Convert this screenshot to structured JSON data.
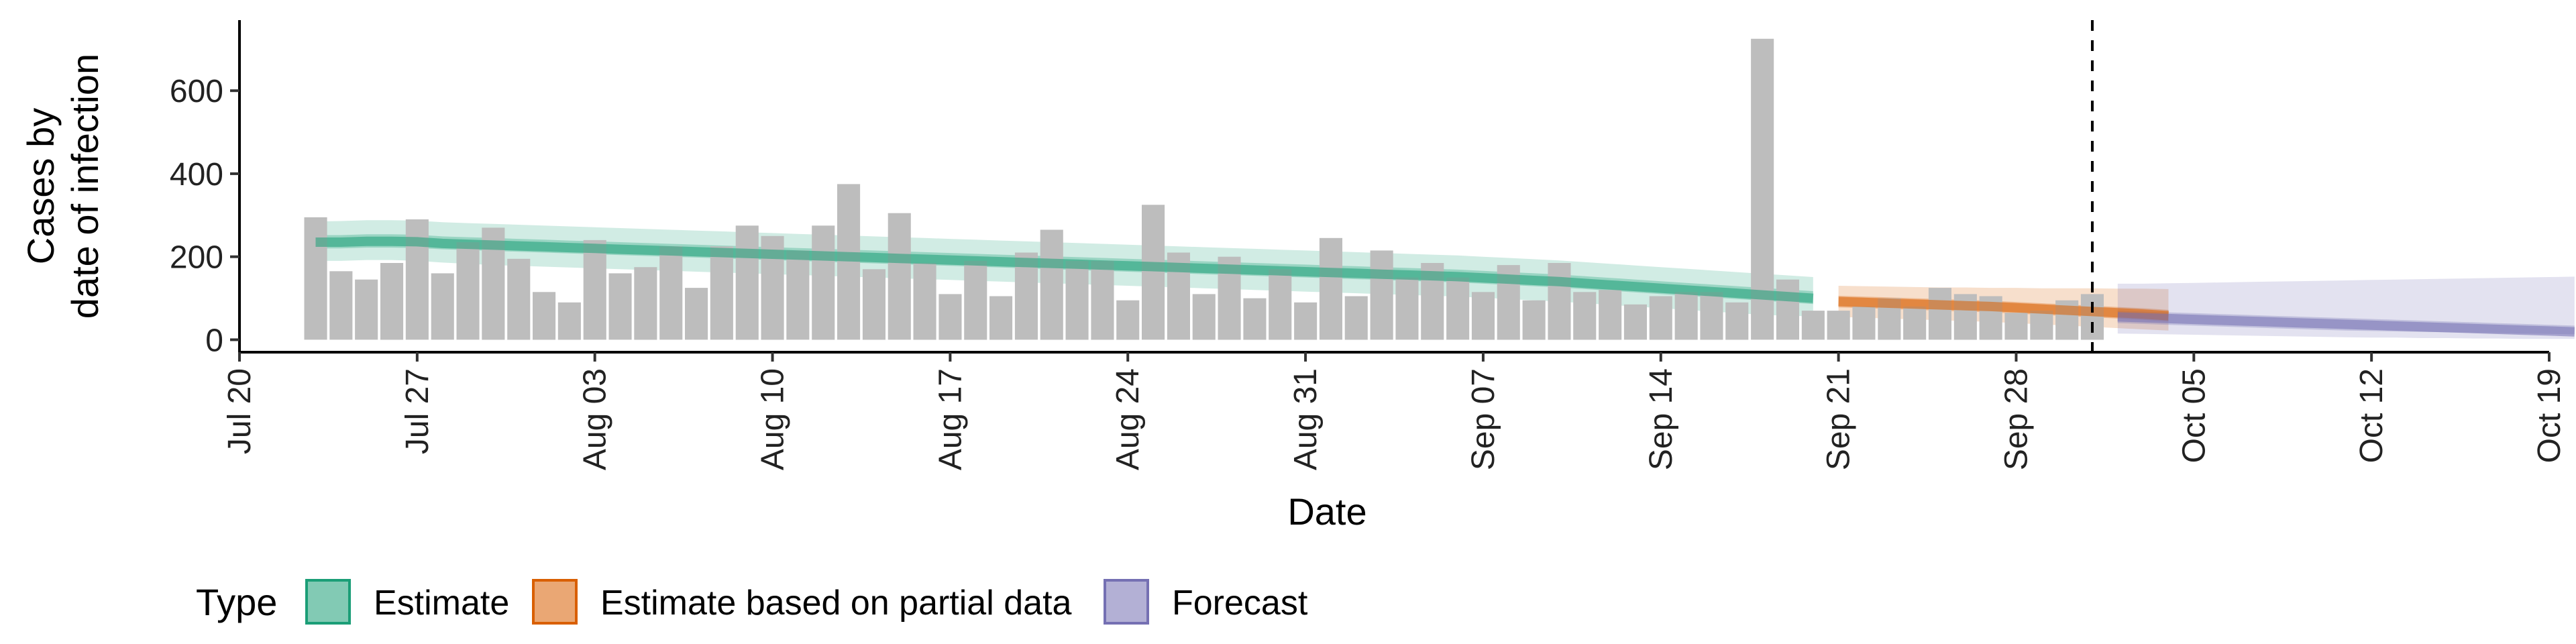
{
  "chart_data": {
    "type": "bar",
    "title": "",
    "xlabel": "Date",
    "ylabel_lines": [
      "Cases by",
      "date of infection"
    ],
    "ylim": [
      -30,
      770
    ],
    "yticks": [
      0,
      200,
      400,
      600
    ],
    "xlim": [
      "2020-07-20",
      "2020-10-19"
    ],
    "xticks": [
      {
        "date": "2020-07-20",
        "label": "Jul 20"
      },
      {
        "date": "2020-07-27",
        "label": "Jul 27"
      },
      {
        "date": "2020-08-03",
        "label": "Aug 03"
      },
      {
        "date": "2020-08-10",
        "label": "Aug 10"
      },
      {
        "date": "2020-08-17",
        "label": "Aug 17"
      },
      {
        "date": "2020-08-24",
        "label": "Aug 24"
      },
      {
        "date": "2020-08-31",
        "label": "Aug 31"
      },
      {
        "date": "2020-09-07",
        "label": "Sep 07"
      },
      {
        "date": "2020-09-14",
        "label": "Sep 14"
      },
      {
        "date": "2020-09-21",
        "label": "Sep 21"
      },
      {
        "date": "2020-09-28",
        "label": "Sep 28"
      },
      {
        "date": "2020-10-05",
        "label": "Oct 05"
      },
      {
        "date": "2020-10-12",
        "label": "Oct 12"
      },
      {
        "date": "2020-10-19",
        "label": "Oct 19"
      }
    ],
    "vline_date": "2020-10-01",
    "bars": {
      "start_date": "2020-07-23",
      "color": "#bdbdbd",
      "values": [
        295,
        165,
        145,
        185,
        290,
        160,
        235,
        270,
        195,
        115,
        90,
        240,
        160,
        175,
        225,
        125,
        225,
        275,
        250,
        215,
        275,
        375,
        170,
        305,
        185,
        110,
        190,
        105,
        210,
        265,
        190,
        190,
        95,
        325,
        210,
        110,
        200,
        100,
        170,
        90,
        245,
        105,
        215,
        150,
        185,
        150,
        115,
        180,
        95,
        185,
        115,
        120,
        85,
        105,
        115,
        115,
        90,
        725,
        145,
        70,
        70,
        80,
        100,
        80,
        125,
        110,
        105,
        65,
        70,
        95,
        110
      ]
    },
    "series": [
      {
        "name": "Estimate",
        "color": "#1b9e77",
        "start_date": "2020-07-23",
        "median": [
          235,
          235,
          237,
          237,
          236,
          232,
          230,
          228,
          226,
          224,
          222,
          220,
          218,
          216,
          214,
          212,
          210,
          208,
          206,
          204,
          202,
          200,
          198,
          196,
          194,
          192,
          190,
          188,
          186,
          184,
          182,
          180,
          178,
          176,
          174,
          172,
          170,
          168,
          166,
          164,
          162,
          160,
          158,
          156,
          154,
          152,
          149,
          146,
          143,
          140,
          136,
          132,
          128,
          124,
          120,
          116,
          112,
          108,
          104,
          100
        ],
        "inner_lo": [
          220,
          220,
          222,
          222,
          221,
          218,
          216,
          214,
          212,
          210,
          208,
          206,
          204,
          202,
          200,
          198,
          196,
          194,
          192,
          190,
          188,
          186,
          184,
          182,
          180,
          178,
          176,
          174,
          172,
          170,
          168,
          166,
          164,
          162,
          160,
          158,
          156,
          154,
          152,
          150,
          148,
          146,
          144,
          142,
          140,
          138,
          135,
          132,
          129,
          126,
          122,
          118,
          114,
          110,
          106,
          102,
          98,
          94,
          90,
          86
        ],
        "inner_hi": [
          252,
          252,
          254,
          254,
          253,
          249,
          247,
          245,
          243,
          241,
          239,
          237,
          235,
          233,
          231,
          229,
          227,
          225,
          223,
          221,
          219,
          217,
          215,
          213,
          211,
          209,
          207,
          205,
          203,
          201,
          199,
          197,
          195,
          193,
          191,
          189,
          187,
          185,
          183,
          181,
          179,
          177,
          175,
          173,
          171,
          169,
          166,
          163,
          160,
          157,
          153,
          149,
          145,
          141,
          137,
          133,
          129,
          125,
          121,
          117
        ],
        "outer_lo": [
          190,
          190,
          192,
          192,
          190,
          186,
          183,
          180,
          178,
          176,
          174,
          172,
          170,
          168,
          166,
          164,
          162,
          160,
          158,
          156,
          154,
          152,
          150,
          148,
          146,
          144,
          142,
          140,
          138,
          136,
          134,
          132,
          130,
          128,
          126,
          124,
          122,
          120,
          118,
          116,
          114,
          112,
          110,
          108,
          106,
          104,
          101,
          98,
          95,
          92,
          88,
          84,
          80,
          76,
          72,
          68,
          64,
          60,
          58,
          56
        ],
        "outer_hi": [
          285,
          286,
          288,
          288,
          287,
          283,
          281,
          279,
          277,
          275,
          273,
          271,
          269,
          267,
          265,
          263,
          261,
          259,
          257,
          255,
          253,
          251,
          249,
          247,
          245,
          243,
          241,
          239,
          237,
          235,
          233,
          231,
          229,
          227,
          225,
          223,
          221,
          219,
          217,
          215,
          213,
          211,
          209,
          207,
          205,
          203,
          200,
          197,
          194,
          191,
          187,
          183,
          179,
          175,
          171,
          167,
          163,
          159,
          155,
          151
        ]
      },
      {
        "name": "Estimate based on partial data",
        "color": "#d95f02",
        "start_date": "2020-09-21",
        "median": [
          92,
          90,
          88,
          86,
          84,
          82,
          80,
          77,
          74,
          71,
          68,
          65,
          62,
          58
        ],
        "inner_lo": [
          78,
          76,
          74,
          72,
          70,
          68,
          66,
          63,
          60,
          57,
          54,
          51,
          48,
          44
        ],
        "inner_hi": [
          106,
          104,
          102,
          100,
          98,
          96,
          94,
          91,
          88,
          85,
          82,
          79,
          76,
          72
        ],
        "outer_lo": [
          55,
          53,
          51,
          49,
          47,
          45,
          43,
          40,
          37,
          34,
          31,
          28,
          25,
          22
        ],
        "outer_hi": [
          130,
          129,
          128,
          127,
          126,
          126,
          125,
          125,
          124,
          124,
          124,
          123,
          123,
          122
        ]
      },
      {
        "name": "Forecast",
        "color": "#7570b3",
        "start_date": "2020-10-02",
        "median": [
          55,
          53,
          51,
          49,
          47,
          45,
          43,
          41,
          39,
          37,
          35,
          33,
          31,
          29,
          27,
          25,
          23,
          21,
          19
        ],
        "inner_lo": [
          40,
          38,
          36,
          34,
          32,
          30,
          28,
          26,
          24,
          22,
          21,
          20,
          19,
          18,
          17,
          16,
          15,
          14,
          13
        ],
        "inner_hi": [
          70,
          68,
          66,
          64,
          62,
          60,
          58,
          56,
          54,
          52,
          50,
          48,
          46,
          44,
          42,
          40,
          38,
          36,
          34
        ],
        "outer_lo": [
          15,
          14,
          13,
          12,
          11,
          10,
          9,
          8,
          7,
          6,
          5,
          5,
          4,
          4,
          3,
          3,
          2,
          2,
          2
        ],
        "outer_hi": [
          135,
          135,
          136,
          137,
          138,
          139,
          140,
          141,
          142,
          143,
          144,
          145,
          146,
          147,
          148,
          149,
          150,
          151,
          152
        ]
      }
    ],
    "legend": {
      "title": "Type",
      "position": "bottom",
      "items": [
        "Estimate",
        "Estimate based on partial data",
        "Forecast"
      ]
    }
  }
}
